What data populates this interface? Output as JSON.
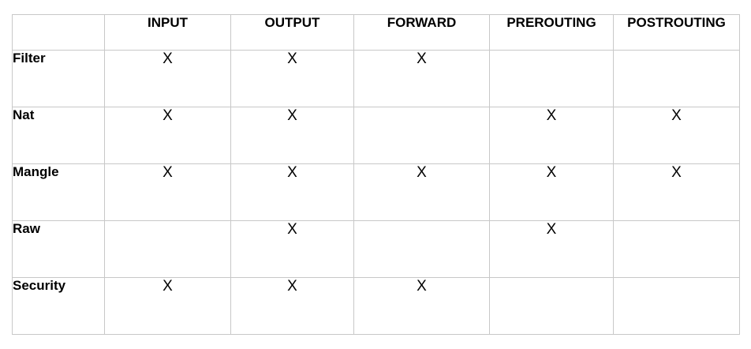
{
  "table": {
    "columns": [
      "INPUT",
      "OUTPUT",
      "FORWARD",
      "PREROUTING",
      "POSTROUTING"
    ],
    "rows": [
      {
        "label": "Filter",
        "cells": [
          "X",
          "X",
          "X",
          "",
          ""
        ]
      },
      {
        "label": "Nat",
        "cells": [
          "X",
          "X",
          "",
          "X",
          "X"
        ]
      },
      {
        "label": "Mangle",
        "cells": [
          "X",
          "X",
          "X",
          "X",
          "X"
        ]
      },
      {
        "label": "Raw",
        "cells": [
          "",
          "X",
          "",
          "X",
          ""
        ]
      },
      {
        "label": "Security",
        "cells": [
          "X",
          "X",
          "X",
          "",
          ""
        ]
      }
    ]
  }
}
